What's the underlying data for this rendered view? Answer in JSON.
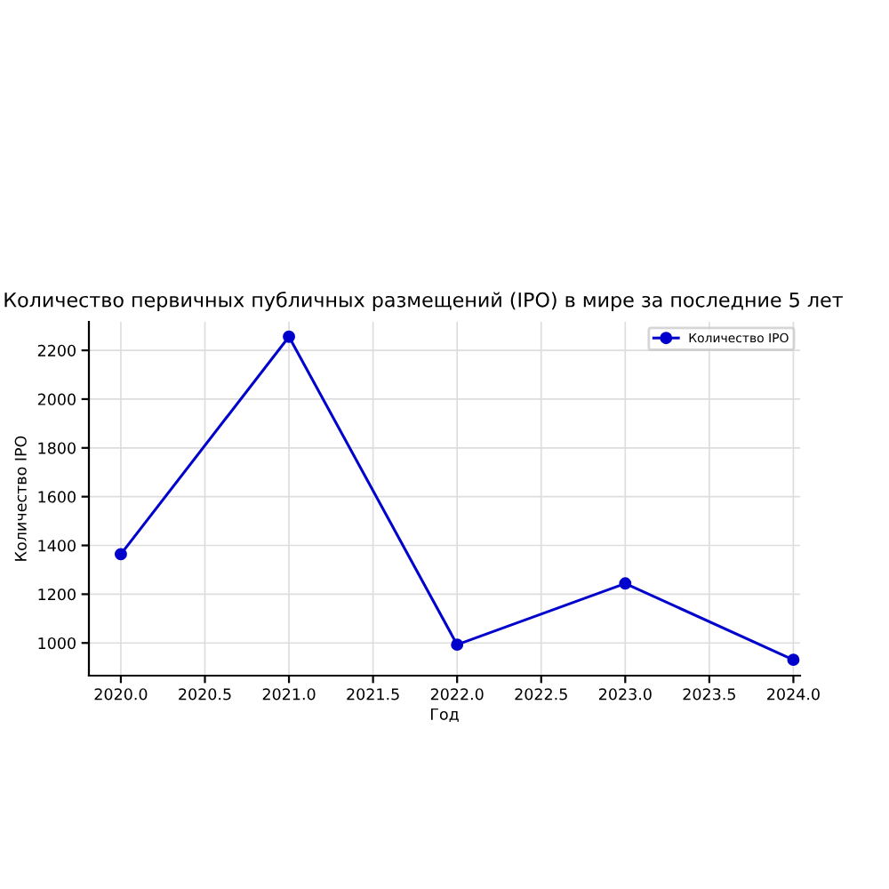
{
  "chart_data": {
    "type": "line",
    "title": "Количество первичных публичных размещений (IPO) в мире за последние 5 лет",
    "xlabel": "Год",
    "ylabel": "Количество IPO",
    "x": [
      2020,
      2021,
      2022,
      2023,
      2024
    ],
    "series": [
      {
        "name": "Количество IPO",
        "color": "#0000cc",
        "values": [
          1364,
          2256,
          993,
          1244,
          931
        ]
      }
    ],
    "xlim": [
      2019.81,
      2024.04
    ],
    "xticks": [
      {
        "value": 2020,
        "label": "2020.0"
      },
      {
        "value": 2020.5,
        "label": "2020.5"
      },
      {
        "value": 2021,
        "label": "2021.0"
      },
      {
        "value": 2021.5,
        "label": "2021.5"
      },
      {
        "value": 2022,
        "label": "2022.0"
      },
      {
        "value": 2022.5,
        "label": "2022.5"
      },
      {
        "value": 2023,
        "label": "2023.0"
      },
      {
        "value": 2023.5,
        "label": "2023.5"
      },
      {
        "value": 2024,
        "label": "2024.0"
      }
    ],
    "ylim": [
      866,
      2317
    ],
    "yticks": [
      1000,
      1200,
      1400,
      1600,
      1800,
      2000,
      2200
    ],
    "grid": true,
    "legend": "top right",
    "marker": "circle",
    "line_style": "solid"
  }
}
